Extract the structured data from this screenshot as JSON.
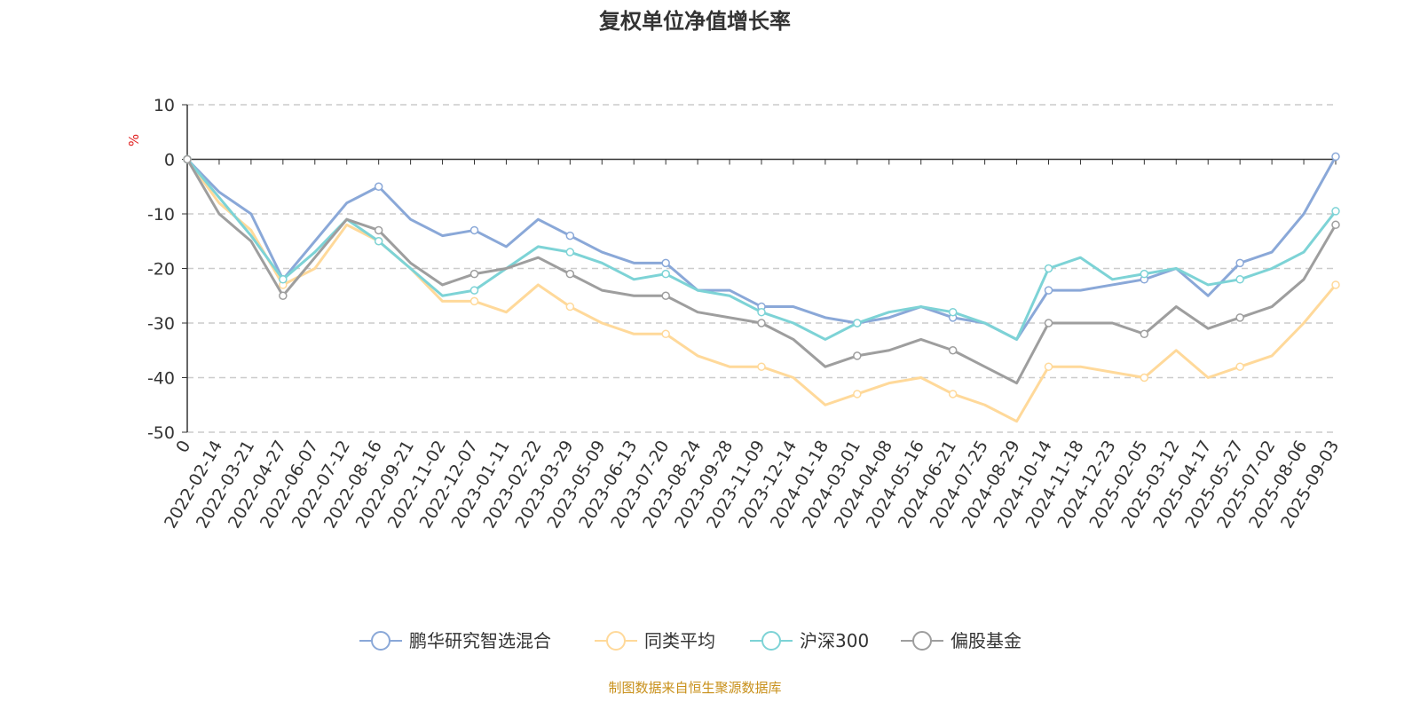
{
  "chart_data": {
    "type": "line",
    "title": "复权单位净值增长率",
    "ylabel": "%",
    "xlabel": "",
    "ylim": [
      -50,
      10
    ],
    "yticks": [
      10,
      0,
      -10,
      -20,
      -30,
      -40,
      -50
    ],
    "grid": true,
    "legend_position": "bottom",
    "categories": [
      "0",
      "2022-02-14",
      "2022-03-21",
      "2022-04-27",
      "2022-06-07",
      "2022-07-12",
      "2022-08-16",
      "2022-09-21",
      "2022-11-02",
      "2022-12-07",
      "2023-01-11",
      "2023-02-22",
      "2023-03-29",
      "2023-05-09",
      "2023-06-13",
      "2023-07-20",
      "2023-08-24",
      "2023-09-28",
      "2023-11-09",
      "2023-12-14",
      "2024-01-18",
      "2024-03-01",
      "2024-04-08",
      "2024-05-16",
      "2024-06-21",
      "2024-07-25",
      "2024-08-29",
      "2024-10-14",
      "2024-11-18",
      "2024-12-23",
      "2025-02-05",
      "2025-03-12",
      "2025-04-17",
      "2025-05-27",
      "2025-07-02",
      "2025-08-06",
      "2025-09-03"
    ],
    "series": [
      {
        "name": "鹏华研究智选混合",
        "color": "#8aa8d8",
        "values": [
          0,
          -6,
          -10,
          -22,
          -15,
          -8,
          -5,
          -11,
          -14,
          -13,
          -16,
          -11,
          -14,
          -17,
          -19,
          -19,
          -24,
          -24,
          -27,
          -27,
          -29,
          -30,
          -29,
          -27,
          -29,
          -30,
          -33,
          -24,
          -24,
          -23,
          -22,
          -20,
          -25,
          -19,
          -17,
          -10,
          0.5
        ]
      },
      {
        "name": "同类平均",
        "color": "#ffd99a",
        "values": [
          0,
          -8,
          -13,
          -23,
          -20,
          -12,
          -15,
          -20,
          -26,
          -26,
          -28,
          -23,
          -27,
          -30,
          -32,
          -32,
          -36,
          -38,
          -38,
          -40,
          -45,
          -43,
          -41,
          -40,
          -43,
          -45,
          -48,
          -38,
          -38,
          -39,
          -40,
          -35,
          -40,
          -38,
          -36,
          -30,
          -23
        ]
      },
      {
        "name": "沪深300",
        "color": "#7dd3d6",
        "values": [
          0,
          -7,
          -14,
          -22,
          -17,
          -11,
          -15,
          -20,
          -25,
          -24,
          -20,
          -16,
          -17,
          -19,
          -22,
          -21,
          -24,
          -25,
          -28,
          -30,
          -33,
          -30,
          -28,
          -27,
          -28,
          -30,
          -33,
          -20,
          -18,
          -22,
          -21,
          -20,
          -23,
          -22,
          -20,
          -17,
          -9.5
        ]
      },
      {
        "name": "偏股基金",
        "color": "#9e9e9e",
        "values": [
          0,
          -10,
          -15,
          -25,
          -18,
          -11,
          -13,
          -19,
          -23,
          -21,
          -20,
          -18,
          -21,
          -24,
          -25,
          -25,
          -28,
          -29,
          -30,
          -33,
          -38,
          -36,
          -35,
          -33,
          -35,
          -38,
          -41,
          -30,
          -30,
          -30,
          -32,
          -27,
          -31,
          -29,
          -27,
          -22,
          -12
        ]
      }
    ]
  },
  "footer": "制图数据来自恒生聚源数据库"
}
